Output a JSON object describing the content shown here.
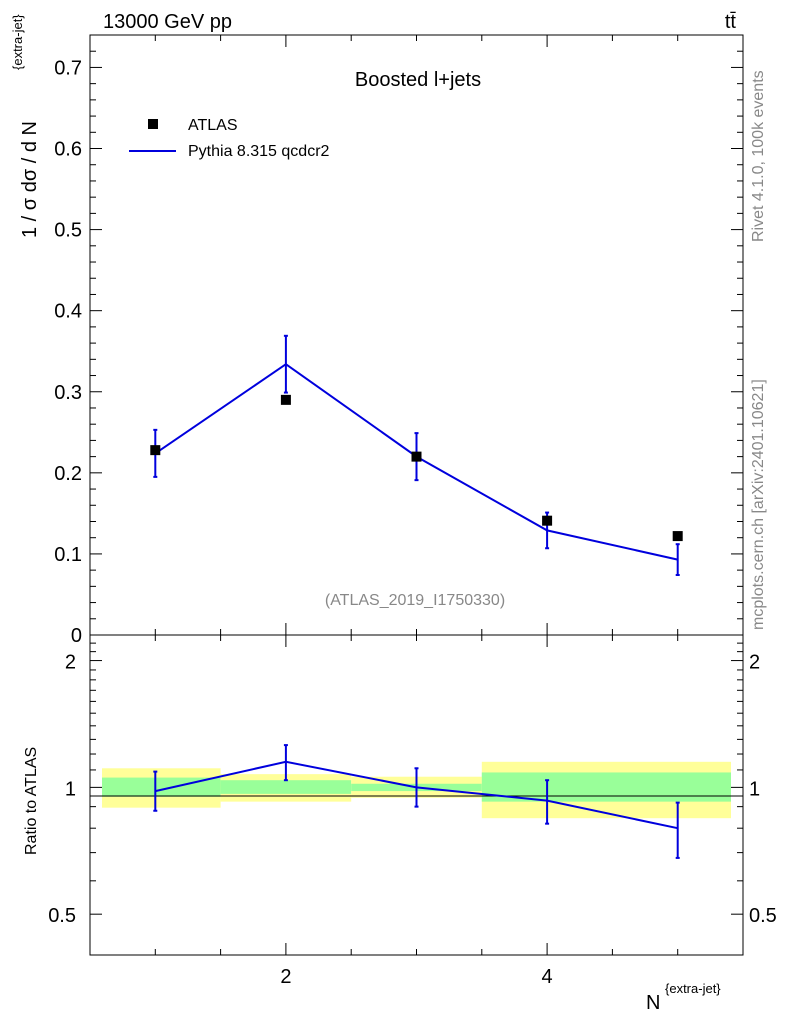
{
  "header": {
    "energy_label": "13000 GeV pp",
    "process_label": "tt̄"
  },
  "side_labels": {
    "rivet": "Rivet 4.1.0,  100k events",
    "mcplots": "mcplots.cern.ch [arXiv:2401.10621]"
  },
  "chart_data": [
    {
      "type": "scatter",
      "title": "Boosted l+jets",
      "watermark": "(ATLAS_2019_I1750330)",
      "ylabel": "1 / σ dσ / d N",
      "ylabel_sup": "{extra-jet}",
      "xlim": [
        0.5,
        5.5
      ],
      "ylim": [
        0,
        0.74
      ],
      "y_ticks": [
        0,
        0.1,
        0.2,
        0.3,
        0.4,
        0.5,
        0.6,
        0.7
      ],
      "y_tick_labels": [
        "0",
        "0.1",
        "0.2",
        "0.3",
        "0.4",
        "0.5",
        "0.6",
        "0.7"
      ],
      "legend_position": "top-left",
      "legend": {
        "data_label": "ATLAS",
        "mc_label": "Pythia 8.315 qcdcr2"
      },
      "series": [
        {
          "name": "ATLAS",
          "style": "markers",
          "color": "#000000",
          "x": [
            1,
            2,
            3,
            4,
            5
          ],
          "y": [
            0.228,
            0.29,
            0.22,
            0.141,
            0.122
          ]
        },
        {
          "name": "Pythia 8.315 qcdcr2",
          "style": "line",
          "color": "#0000dd",
          "x": [
            1,
            2,
            3,
            4,
            5
          ],
          "y": [
            0.224,
            0.334,
            0.22,
            0.129,
            0.093
          ],
          "err_up": [
            0.029,
            0.035,
            0.029,
            0.022,
            0.019
          ],
          "err_down": [
            0.029,
            0.035,
            0.029,
            0.022,
            0.019
          ]
        }
      ]
    },
    {
      "type": "line",
      "ylabel": "Ratio to ATLAS",
      "xlabel": "N",
      "xlabel_sup": "{extra-jet}",
      "xlim": [
        0.5,
        5.5
      ],
      "ylim": [
        0.4,
        2.3
      ],
      "y_scale": "log",
      "x_ticks": [
        2,
        4
      ],
      "x_tick_labels": [
        "2",
        "4"
      ],
      "y_ticks": [
        0.5,
        1,
        2
      ],
      "y_tick_labels": [
        "0.5",
        "1",
        "2"
      ],
      "bands": [
        {
          "x0": 0.5,
          "x1": 1.5,
          "green": [
            0.95,
            1.055
          ],
          "yellow": [
            0.895,
            1.11
          ]
        },
        {
          "x0": 1.5,
          "x1": 2.5,
          "green": [
            0.965,
            1.04
          ],
          "yellow": [
            0.925,
            1.075
          ]
        },
        {
          "x0": 2.5,
          "x1": 3.5,
          "green": [
            0.98,
            1.02
          ],
          "yellow": [
            0.945,
            1.06
          ]
        },
        {
          "x0": 3.5,
          "x1": 5.5,
          "green": [
            0.925,
            1.085
          ],
          "yellow": [
            0.845,
            1.15
          ]
        }
      ],
      "series": [
        {
          "name": "Pythia 8.315 qcdcr2 / ATLAS",
          "color": "#0000dd",
          "x": [
            1,
            2,
            3,
            4,
            5
          ],
          "y": [
            0.98,
            1.15,
            1.0,
            0.93,
            0.8
          ],
          "err_up": [
            0.11,
            0.11,
            0.11,
            0.11,
            0.12
          ],
          "err_down": [
            0.1,
            0.11,
            0.1,
            0.11,
            0.12
          ]
        }
      ]
    }
  ]
}
